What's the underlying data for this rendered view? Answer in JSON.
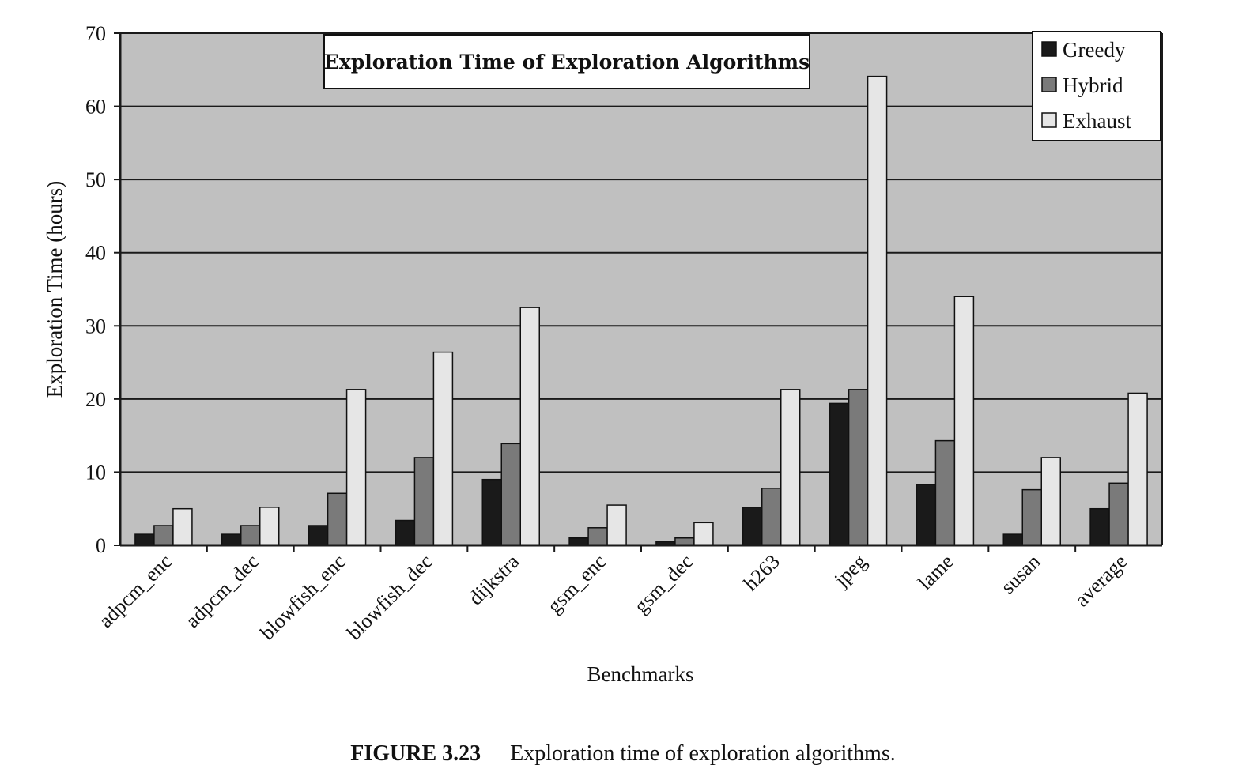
{
  "chart_data": {
    "type": "bar",
    "title": "Exploration Time of Exploration Algorithms",
    "xlabel": "Benchmarks",
    "ylabel": "Exploration Time (hours)",
    "ylim": [
      0,
      70
    ],
    "yticks": [
      0,
      10,
      20,
      30,
      40,
      50,
      60,
      70
    ],
    "grid": true,
    "legend_position": "top-right",
    "categories": [
      "adpcm_enc",
      "adpcm_dec",
      "blowfish_enc",
      "blowfish_dec",
      "dijkstra",
      "gsm_enc",
      "gsm_dec",
      "h263",
      "jpeg",
      "lame",
      "susan",
      "average"
    ],
    "series": [
      {
        "name": "Greedy",
        "color": "#1a1a1a",
        "values": [
          1.5,
          1.5,
          2.7,
          3.4,
          9.0,
          1.0,
          0.5,
          5.2,
          19.4,
          8.3,
          1.5,
          5.0
        ]
      },
      {
        "name": "Hybrid",
        "color": "#7a7a7a",
        "values": [
          2.7,
          2.7,
          7.1,
          12.0,
          13.9,
          2.4,
          1.0,
          7.8,
          21.3,
          14.3,
          7.6,
          8.5
        ]
      },
      {
        "name": "Exhaust",
        "color": "#e6e6e6",
        "values": [
          5.0,
          5.2,
          21.3,
          26.4,
          32.5,
          5.5,
          3.1,
          21.3,
          64.1,
          34.0,
          12.0,
          20.8
        ]
      }
    ]
  },
  "caption": {
    "label": "FIGURE 3.23",
    "text": "Exploration time of exploration algorithms."
  }
}
